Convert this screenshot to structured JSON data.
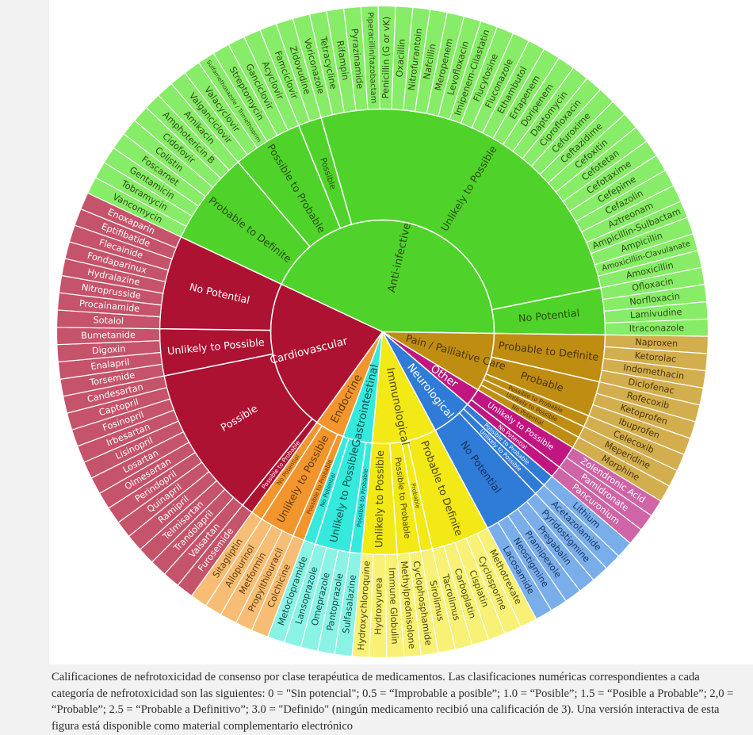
{
  "page": {
    "background_color": "#f2f2f3",
    "panel_color": "#ffffff"
  },
  "caption": {
    "text": "Calificaciones de nefrotoxicidad de consenso por clase terapéutica de medicamentos. Las clasificaciones numéricas correspondientes a cada categoría de nefrotoxicidad son las siguientes: 0 = \"Sin potencial\"; 0.5 = “Improbable a posible”; 1.0 = “Posible”; 1.5 = “Posible a Probable”; 2,0 = “Probable”; 2.5 = “Probable a Definitivo”; 3.0 = \"Definido\" (ningún medicamento recibió una calificación de 3). Una versión interactiva de esta figura está disponible como material complementario electrónico"
  },
  "chart_data": {
    "type": "sunburst",
    "rings": [
      "therapeutic_class",
      "nephrotoxicity_rating",
      "medication"
    ],
    "start_angle_deg": 295.2,
    "geometry": {
      "center_x": 482.5,
      "center_y": 418.5,
      "ring_radii": [
        0,
        141,
        281,
        411
      ]
    },
    "stroke_color": "#ffffff",
    "classes": [
      {
        "label": "Anti-infective",
        "slug": "anti-infective",
        "wedge_color": "#4fd32a",
        "drug_color": "#87ec67",
        "category_label_color": "#2c4b10",
        "rating_label_color": "#2c4b10",
        "drug_label_color": "#2f4a12",
        "ratings": [
          {
            "label": "Probable to Definite",
            "drugs": [
              "Vancomycin",
              "Tobramycin",
              "Gentamicin",
              "Foscarnet",
              "Colistin",
              "Cidofovir",
              "Amphotericin B",
              "Amikacin"
            ]
          },
          {
            "label": "Possible to Probable",
            "drugs": [
              "Valganciclovir",
              "Valacyclovir",
              "Sulfamethoxazole / Trimethoprim",
              "Streptomycin",
              "Ganciclovir",
              "Acyclovir"
            ]
          },
          {
            "label": "Possible",
            "drugs": [
              "Famciclovir",
              "Zidovudine"
            ]
          },
          {
            "label": "Unlikely to Possible",
            "drugs": [
              "Voriconazole",
              "Tetracycline",
              "Rifampin",
              "Pyrazinamide",
              "Piperacillin/tazobactam",
              "Penicillin (G or vK)",
              "Oxacillin",
              "Nitrofurantoin",
              "Nafcillin",
              "Meropenem",
              "Levofloxacin",
              "Imipenem-Cilastatin",
              "Flucytosine",
              "Fluconazole",
              "Ethambutol",
              "Ertapenem",
              "Doripenem",
              "Daptomycin",
              "Ciprofloxacin",
              "Cefuroxime",
              "Ceftazidime",
              "Cefoxitin",
              "Cefotetan",
              "Cefotaxime",
              "Cefepime",
              "Cefazolin",
              "Aztreonam",
              "Ampicillin-Sulbactam",
              "Ampicillin",
              "Amoxicillin-Clavulanate",
              "Amoxicillin"
            ]
          },
          {
            "label": "No Potential",
            "drugs": [
              "Ofloxacin",
              "Norfloxacin",
              "Lamivudine",
              "Itraconazole"
            ]
          }
        ]
      },
      {
        "label": "Pain / Palliative Care",
        "slug": "pain-palliative-care",
        "wedge_color": "#c08d13",
        "drug_color": "#d3ae4e",
        "category_label_color": "#4a3505",
        "rating_label_color": "#4a3505",
        "drug_label_color": "#4a3505",
        "ratings": [
          {
            "label": "Probable to Definite",
            "drugs": [
              "Naproxen",
              "Ketorolac",
              "Indomethacin",
              "Diclofenac"
            ]
          },
          {
            "label": "Probable",
            "drugs": [
              "Rofecoxib",
              "Ketoprofen",
              "Ibuprofen"
            ]
          },
          {
            "label": "Possible to Probable",
            "drugs": [
              "Celecoxib"
            ]
          },
          {
            "label": "Unlikely to Possible",
            "drugs": [
              "Meperidine"
            ]
          },
          {
            "label": "No Potential",
            "drugs": [
              "Morphine"
            ]
          }
        ]
      },
      {
        "label": "Other",
        "slug": "other",
        "wedge_color": "#c11580",
        "drug_color": "#cf64a6",
        "category_label_color": "#ffffff",
        "rating_label_color": "#ffffff",
        "drug_label_color": "#ffffff",
        "ratings": [
          {
            "label": "Unlikely to Possible",
            "drugs": [
              "Zolendronic Acid",
              "Pamidronate"
            ]
          },
          {
            "label": "No Potential",
            "drugs": [
              "Pancuronium"
            ]
          }
        ]
      },
      {
        "label": "Neurological",
        "slug": "neurological",
        "wedge_color": "#2f7bd8",
        "drug_color": "#79aeea",
        "category_label_color": "#ffffff",
        "rating_label_color": "#17335f",
        "drug_label_color": "#17335f",
        "ratings": [
          {
            "label": "Possible to Probable",
            "drugs": [
              "Lithium"
            ],
            "label_color": "#ffffff"
          },
          {
            "label": "Unlikely to Possible",
            "drugs": [
              "Acetazolamide"
            ],
            "label_color": "#ffffff"
          },
          {
            "label": "No Potential",
            "drugs": [
              "Pyridostigmine",
              "Pregabalin",
              "Pramipexole",
              "Neostigmine",
              "Lacosamide"
            ]
          }
        ]
      },
      {
        "label": "Immunological",
        "slug": "immunological",
        "wedge_color": "#f2e916",
        "drug_color": "#f8f175",
        "category_label_color": "#4c450b",
        "rating_label_color": "#4c450b",
        "drug_label_color": "#4c450b",
        "ratings": [
          {
            "label": "Probable to Definite",
            "drugs": [
              "Methotrexate",
              "Cyclosporine",
              "Cisplatin",
              "Carboplatin",
              "Tacrolimus"
            ]
          },
          {
            "label": "Probable",
            "drugs": [
              "Sirolimus"
            ]
          },
          {
            "label": "Possible to Probable",
            "drugs": [
              "Cyclophosphamide",
              "Methylprednisolone"
            ]
          },
          {
            "label": "Unlikely to Possible",
            "drugs": [
              "Immune Globulin",
              "Hydroxyurea",
              "Hydroxychloroquine"
            ]
          }
        ]
      },
      {
        "label": "Gastrointestinal",
        "slug": "gastrointestinal",
        "wedge_color": "#35e9dd",
        "drug_color": "#8bf2e6",
        "category_label_color": "#0a4f49",
        "rating_label_color": "#0a4f49",
        "drug_label_color": "#0a4f49",
        "ratings": [
          {
            "label": "Possible to Probable",
            "drugs": [
              "Sulfasalazine"
            ]
          },
          {
            "label": "Unlikely to Possible",
            "drugs": [
              "Pantoprazole",
              "Omeprazole",
              "Lansoprazole"
            ]
          },
          {
            "label": "No Potential",
            "drugs": [
              "Metoclopramide"
            ]
          }
        ]
      },
      {
        "label": "Endocrine",
        "slug": "endocrine",
        "wedge_color": "#f2952d",
        "drug_color": "#f7bd74",
        "category_label_color": "#5e3b07",
        "rating_label_color": "#5e3b07",
        "drug_label_color": "#5e3b07",
        "ratings": [
          {
            "label": "Possible to Probable",
            "drugs": [
              "Colchicine"
            ]
          },
          {
            "label": "Unlikely to Possible",
            "drugs": [
              "Propylthiouracil",
              "Metformin",
              "Allopurinol"
            ]
          },
          {
            "label": "No Potential",
            "drugs": [
              "Sitagliptin"
            ]
          }
        ]
      },
      {
        "label": "Cardiovascular",
        "slug": "cardiovascular",
        "wedge_color": "#ad1232",
        "drug_color": "#c5536a",
        "category_label_color": "#ffffff",
        "rating_label_color": "#ffffff",
        "drug_label_color": "#ffffff",
        "ratings": [
          {
            "label": "Possible to Probable",
            "drugs": [
              "Furosemide"
            ]
          },
          {
            "label": "Possible",
            "drugs": [
              "Valsartan",
              "Trandolapril",
              "Telmisartan",
              "Ramipril",
              "Quinapril",
              "Perindopril",
              "Olmesartan",
              "Losartan",
              "Lisinopril",
              "Irbesartan",
              "Fosinopril",
              "Captopril",
              "Candesartan"
            ]
          },
          {
            "label": "Unlikely to Possible",
            "drugs": [
              "Torsemide",
              "Enalapril",
              "Digoxin",
              "Bumetanide"
            ]
          },
          {
            "label": "No Potential",
            "drugs": [
              "Sotalol",
              "Procainamide",
              "Nitroprusside",
              "Hydralazine",
              "Fondaparinux",
              "Flecainide",
              "Eptifibatide",
              "Enoxaparin"
            ]
          }
        ]
      }
    ]
  }
}
